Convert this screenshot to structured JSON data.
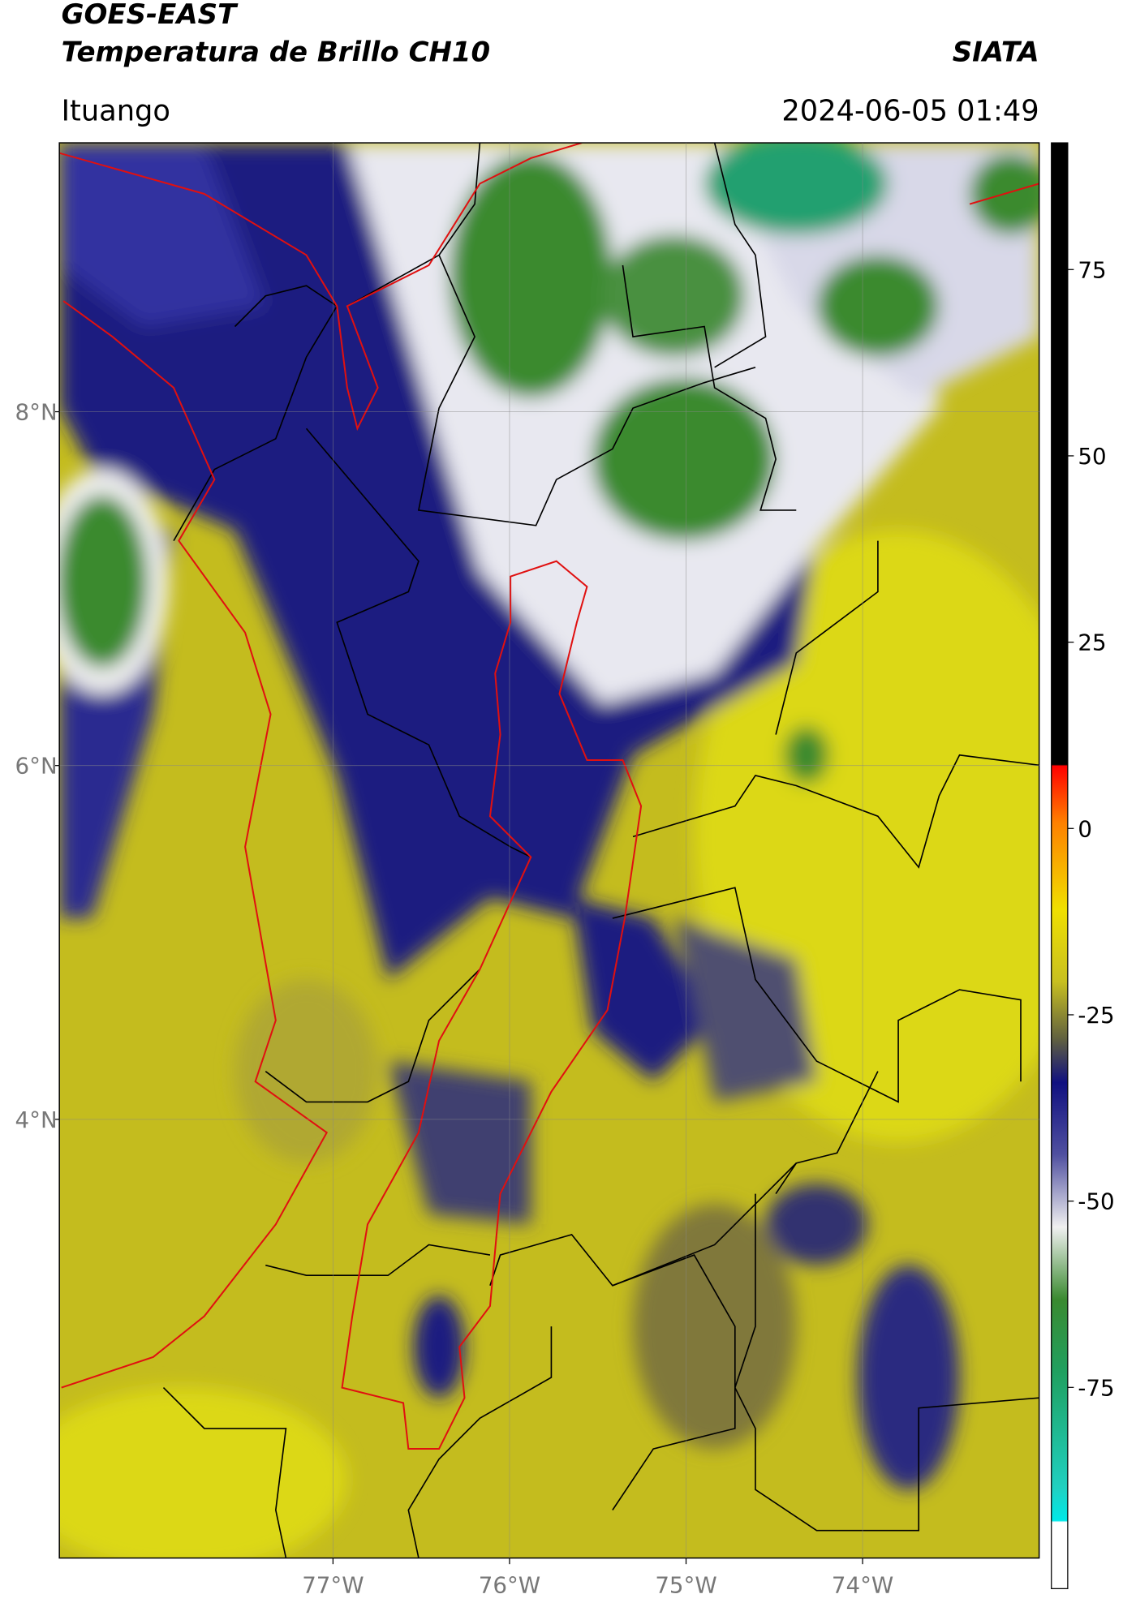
{
  "header": {
    "title": "GOES-EAST",
    "subtitle": "Temperatura de Brillo CH10",
    "source": "SIATA",
    "location": "Ituango",
    "datetime": "2024-06-05 01:49"
  },
  "map": {
    "latlim": [
      1.52,
      9.52
    ],
    "lonlim": [
      -78.55,
      -73.0
    ],
    "lat_ticks": [
      {
        "value": 8,
        "label": "8°N"
      },
      {
        "value": 6,
        "label": "6°N"
      },
      {
        "value": 4,
        "label": "4°N"
      }
    ],
    "lon_ticks": [
      {
        "value": -77,
        "label": "77°W"
      },
      {
        "value": -76,
        "label": "76°W"
      },
      {
        "value": -75,
        "label": "75°W"
      },
      {
        "value": -74,
        "label": "74°W"
      }
    ]
  },
  "colorbar": {
    "lim": [
      -102,
      92
    ],
    "ticks": [
      75,
      50,
      25,
      0,
      -25,
      -50,
      -75
    ]
  }
}
